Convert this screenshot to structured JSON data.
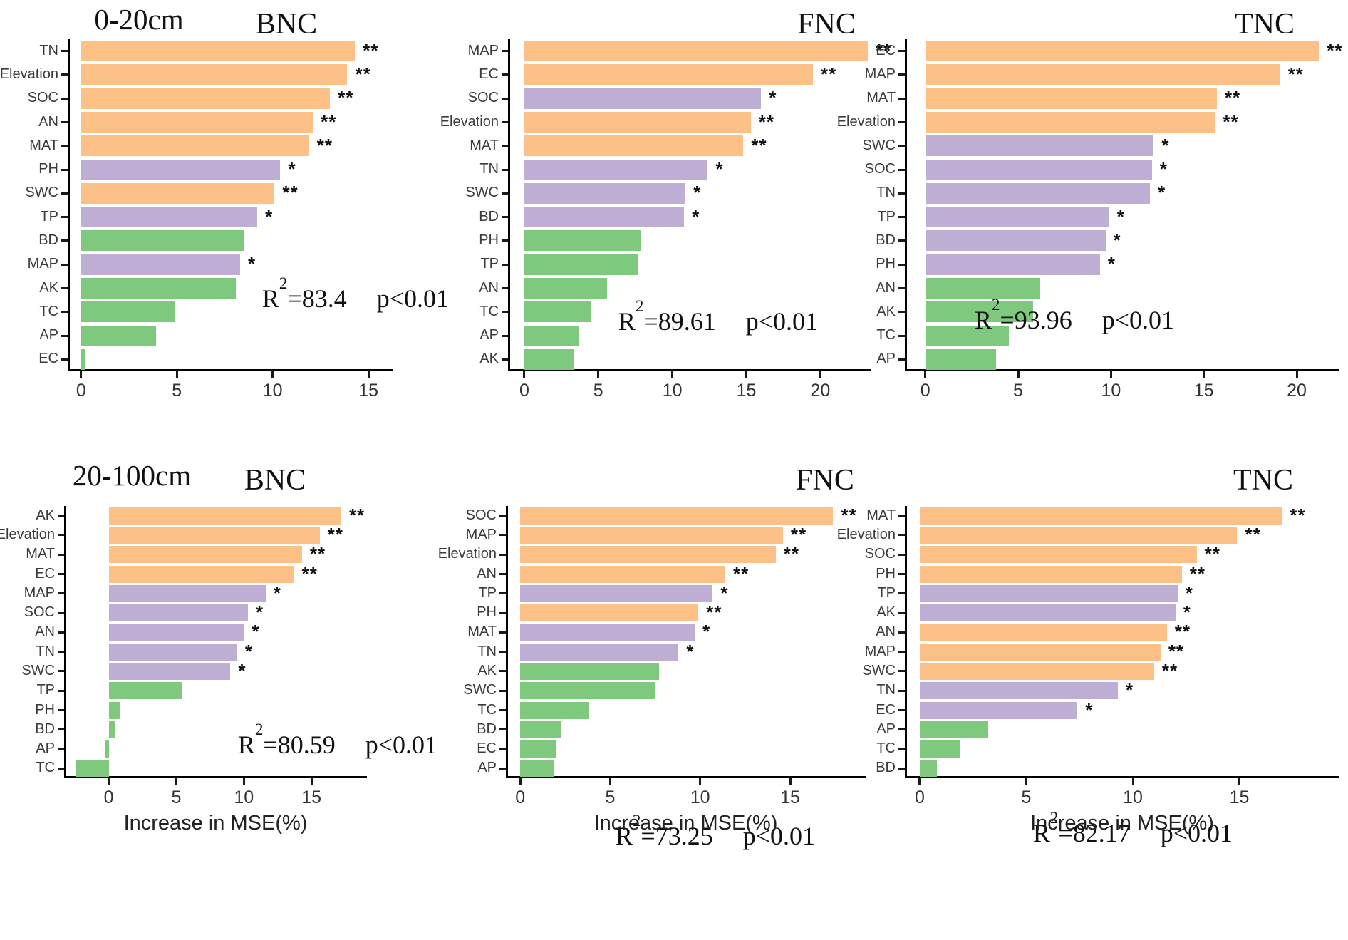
{
  "palette": {
    "orange": "#FDC086",
    "purple": "#BEAED4",
    "green": "#7FC97F",
    "axis_line": "#000000",
    "label_text": "#3B3B3B"
  },
  "chart_data": {
    "type": "bar",
    "orientation": "horizontal",
    "grid": "off",
    "value_axis_label": "Increase in MSE(%)",
    "significance_legend": {
      "double_star": "**",
      "single_star": "*"
    },
    "depth_groups": [
      "0-20cm",
      "20-100cm"
    ],
    "panels": [
      {
        "id": "bnc-0-20",
        "title": "BNC",
        "depth": "0-20cm",
        "r2": "83.4",
        "p": "p<0.01",
        "xmin": -0.7,
        "xmax": 16.3,
        "ticks": [
          0,
          5,
          10,
          15
        ],
        "bars": [
          {
            "label": "TN",
            "value": 14.3,
            "color": "orange",
            "sig": "**"
          },
          {
            "label": "Elevation",
            "value": 13.9,
            "color": "orange",
            "sig": "**"
          },
          {
            "label": "SOC",
            "value": 13.0,
            "color": "orange",
            "sig": "**"
          },
          {
            "label": "AN",
            "value": 12.1,
            "color": "orange",
            "sig": "**"
          },
          {
            "label": "MAT",
            "value": 11.9,
            "color": "orange",
            "sig": "**"
          },
          {
            "label": "PH",
            "value": 10.4,
            "color": "purple",
            "sig": "*"
          },
          {
            "label": "SWC",
            "value": 10.1,
            "color": "orange",
            "sig": "**"
          },
          {
            "label": "TP",
            "value": 9.2,
            "color": "purple",
            "sig": "*"
          },
          {
            "label": "BD",
            "value": 8.5,
            "color": "green",
            "sig": ""
          },
          {
            "label": "MAP",
            "value": 8.3,
            "color": "purple",
            "sig": "*"
          },
          {
            "label": "AK",
            "value": 8.1,
            "color": "green",
            "sig": ""
          },
          {
            "label": "TC",
            "value": 4.9,
            "color": "green",
            "sig": ""
          },
          {
            "label": "AP",
            "value": 3.9,
            "color": "green",
            "sig": ""
          },
          {
            "label": "EC",
            "value": 0.2,
            "color": "green",
            "sig": ""
          }
        ]
      },
      {
        "id": "fnc-0-20",
        "title": "FNC",
        "depth": "0-20cm",
        "r2": "89.61",
        "p": "p<0.01",
        "xmin": -1.1,
        "xmax": 23.4,
        "ticks": [
          0,
          5,
          10,
          15,
          20
        ],
        "bars": [
          {
            "label": "MAP",
            "value": 23.2,
            "color": "orange",
            "sig": "**"
          },
          {
            "label": "EC",
            "value": 19.5,
            "color": "orange",
            "sig": "**"
          },
          {
            "label": "SOC",
            "value": 16.0,
            "color": "purple",
            "sig": "*"
          },
          {
            "label": "Elevation",
            "value": 15.3,
            "color": "orange",
            "sig": "**"
          },
          {
            "label": "MAT",
            "value": 14.8,
            "color": "orange",
            "sig": "**"
          },
          {
            "label": "TN",
            "value": 12.4,
            "color": "purple",
            "sig": "*"
          },
          {
            "label": "SWC",
            "value": 10.9,
            "color": "purple",
            "sig": "*"
          },
          {
            "label": "BD",
            "value": 10.8,
            "color": "purple",
            "sig": "*"
          },
          {
            "label": "PH",
            "value": 7.9,
            "color": "green",
            "sig": ""
          },
          {
            "label": "TP",
            "value": 7.7,
            "color": "green",
            "sig": ""
          },
          {
            "label": "AN",
            "value": 5.6,
            "color": "green",
            "sig": ""
          },
          {
            "label": "TC",
            "value": 4.5,
            "color": "green",
            "sig": ""
          },
          {
            "label": "AP",
            "value": 3.7,
            "color": "green",
            "sig": ""
          },
          {
            "label": "AK",
            "value": 3.4,
            "color": "green",
            "sig": ""
          }
        ]
      },
      {
        "id": "tnc-0-20",
        "title": "TNC",
        "depth": "0-20cm",
        "r2": "93.96",
        "p": "p<0.01",
        "xmin": -1.1,
        "xmax": 22.3,
        "ticks": [
          0,
          5,
          10,
          15,
          20
        ],
        "bars": [
          {
            "label": "EC",
            "value": 21.2,
            "color": "orange",
            "sig": "**"
          },
          {
            "label": "MAP",
            "value": 19.1,
            "color": "orange",
            "sig": "**"
          },
          {
            "label": "MAT",
            "value": 15.7,
            "color": "orange",
            "sig": "**"
          },
          {
            "label": "Elevation",
            "value": 15.6,
            "color": "orange",
            "sig": "**"
          },
          {
            "label": "SWC",
            "value": 12.3,
            "color": "purple",
            "sig": "*"
          },
          {
            "label": "SOC",
            "value": 12.2,
            "color": "purple",
            "sig": "*"
          },
          {
            "label": "TN",
            "value": 12.1,
            "color": "purple",
            "sig": "*"
          },
          {
            "label": "TP",
            "value": 9.9,
            "color": "purple",
            "sig": "*"
          },
          {
            "label": "BD",
            "value": 9.7,
            "color": "purple",
            "sig": "*"
          },
          {
            "label": "PH",
            "value": 9.4,
            "color": "purple",
            "sig": "*"
          },
          {
            "label": "AN",
            "value": 6.2,
            "color": "green",
            "sig": ""
          },
          {
            "label": "AK",
            "value": 5.8,
            "color": "green",
            "sig": ""
          },
          {
            "label": "TC",
            "value": 4.5,
            "color": "green",
            "sig": ""
          },
          {
            "label": "AP",
            "value": 3.8,
            "color": "green",
            "sig": ""
          }
        ]
      },
      {
        "id": "bnc-20-100",
        "title": "BNC",
        "depth": "20-100cm",
        "r2": "80.59",
        "p": "p<0.01",
        "xmin": -3.3,
        "xmax": 19.1,
        "ticks": [
          0,
          5,
          10,
          15
        ],
        "bars": [
          {
            "label": "AK",
            "value": 17.2,
            "color": "orange",
            "sig": "**"
          },
          {
            "label": "Elevation",
            "value": 15.6,
            "color": "orange",
            "sig": "**"
          },
          {
            "label": "MAT",
            "value": 14.3,
            "color": "orange",
            "sig": "**"
          },
          {
            "label": "EC",
            "value": 13.7,
            "color": "orange",
            "sig": "**"
          },
          {
            "label": "MAP",
            "value": 11.6,
            "color": "purple",
            "sig": "*"
          },
          {
            "label": "SOC",
            "value": 10.3,
            "color": "purple",
            "sig": "*"
          },
          {
            "label": "AN",
            "value": 10.0,
            "color": "purple",
            "sig": "*"
          },
          {
            "label": "TN",
            "value": 9.5,
            "color": "purple",
            "sig": "*"
          },
          {
            "label": "SWC",
            "value": 9.0,
            "color": "purple",
            "sig": "*"
          },
          {
            "label": "TP",
            "value": 5.4,
            "color": "green",
            "sig": ""
          },
          {
            "label": "PH",
            "value": 0.8,
            "color": "green",
            "sig": ""
          },
          {
            "label": "BD",
            "value": 0.5,
            "color": "green",
            "sig": ""
          },
          {
            "label": "AP",
            "value": -0.25,
            "color": "green",
            "sig": ""
          },
          {
            "label": "TC",
            "value": -2.4,
            "color": "green",
            "sig": ""
          }
        ]
      },
      {
        "id": "fnc-20-100",
        "title": "FNC",
        "depth": "20-100cm",
        "r2": "73.25",
        "p": "p<0.01",
        "xmin": -0.8,
        "xmax": 19.2,
        "ticks": [
          0,
          5,
          10,
          15
        ],
        "bars": [
          {
            "label": "SOC",
            "value": 17.4,
            "color": "orange",
            "sig": "**"
          },
          {
            "label": "MAP",
            "value": 14.6,
            "color": "orange",
            "sig": "**"
          },
          {
            "label": "Elevation",
            "value": 14.2,
            "color": "orange",
            "sig": "**"
          },
          {
            "label": "AN",
            "value": 11.4,
            "color": "orange",
            "sig": "**"
          },
          {
            "label": "TP",
            "value": 10.7,
            "color": "purple",
            "sig": "*"
          },
          {
            "label": "PH",
            "value": 9.9,
            "color": "orange",
            "sig": "**"
          },
          {
            "label": "MAT",
            "value": 9.7,
            "color": "purple",
            "sig": "*"
          },
          {
            "label": "TN",
            "value": 8.8,
            "color": "purple",
            "sig": "*"
          },
          {
            "label": "AK",
            "value": 7.7,
            "color": "green",
            "sig": ""
          },
          {
            "label": "SWC",
            "value": 7.5,
            "color": "green",
            "sig": ""
          },
          {
            "label": "TC",
            "value": 3.8,
            "color": "green",
            "sig": ""
          },
          {
            "label": "BD",
            "value": 2.3,
            "color": "green",
            "sig": ""
          },
          {
            "label": "EC",
            "value": 2.0,
            "color": "green",
            "sig": ""
          },
          {
            "label": "AP",
            "value": 1.9,
            "color": "green",
            "sig": ""
          }
        ]
      },
      {
        "id": "tnc-20-100",
        "title": "TNC",
        "depth": "20-100cm",
        "r2": "82.17",
        "p": "p<0.01",
        "xmin": -0.7,
        "xmax": 19.7,
        "ticks": [
          0,
          5,
          10,
          15
        ],
        "bars": [
          {
            "label": "MAT",
            "value": 17.0,
            "color": "orange",
            "sig": "**"
          },
          {
            "label": "Elevation",
            "value": 14.9,
            "color": "orange",
            "sig": "**"
          },
          {
            "label": "SOC",
            "value": 13.0,
            "color": "orange",
            "sig": "**"
          },
          {
            "label": "PH",
            "value": 12.3,
            "color": "orange",
            "sig": "**"
          },
          {
            "label": "TP",
            "value": 12.1,
            "color": "purple",
            "sig": "*"
          },
          {
            "label": "AK",
            "value": 12.0,
            "color": "purple",
            "sig": "*"
          },
          {
            "label": "AN",
            "value": 11.6,
            "color": "orange",
            "sig": "**"
          },
          {
            "label": "MAP",
            "value": 11.3,
            "color": "orange",
            "sig": "**"
          },
          {
            "label": "SWC",
            "value": 11.0,
            "color": "orange",
            "sig": "**"
          },
          {
            "label": "TN",
            "value": 9.3,
            "color": "purple",
            "sig": "*"
          },
          {
            "label": "EC",
            "value": 7.4,
            "color": "purple",
            "sig": "*"
          },
          {
            "label": "AP",
            "value": 3.2,
            "color": "green",
            "sig": ""
          },
          {
            "label": "TC",
            "value": 1.9,
            "color": "green",
            "sig": ""
          },
          {
            "label": "BD",
            "value": 0.8,
            "color": "green",
            "sig": ""
          }
        ]
      }
    ]
  }
}
